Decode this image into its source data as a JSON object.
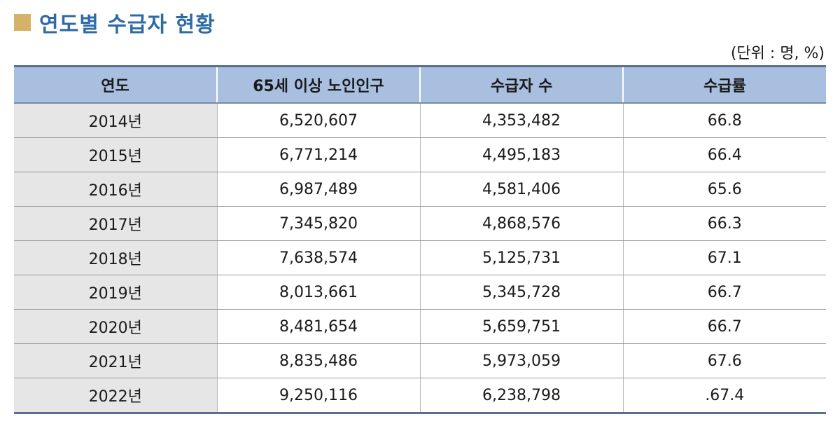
{
  "title": "연도별 수급자 현황",
  "unit": "(단위 : 명, %)",
  "table": {
    "headers": [
      "연도",
      "65세 이상 노인인구",
      "수급자 수",
      "수급률"
    ],
    "rows": [
      [
        "2014년",
        "6,520,607",
        "4,353,482",
        "66.8"
      ],
      [
        "2015년",
        "6,771,214",
        "4,495,183",
        "66.4"
      ],
      [
        "2016년",
        "6,987,489",
        "4,581,406",
        "65.6"
      ],
      [
        "2017년",
        "7,345,820",
        "4,868,576",
        "66.3"
      ],
      [
        "2018년",
        "7,638,574",
        "5,125,731",
        "67.1"
      ],
      [
        "2019년",
        "8,013,661",
        "5,345,728",
        "66.7"
      ],
      [
        "2020년",
        "8,481,654",
        "5,659,751",
        "66.7"
      ],
      [
        "2021년",
        "8,835,486",
        "5,973,059",
        "67.6"
      ],
      [
        "2022년",
        "9,250,116",
        "6,238,798",
        ".67.4"
      ]
    ]
  },
  "colors": {
    "title": "#2f6aa8",
    "title_square": "#d4b26a",
    "header_bg": "#a9bfe0",
    "year_col_bg": "#e6e6e6"
  }
}
